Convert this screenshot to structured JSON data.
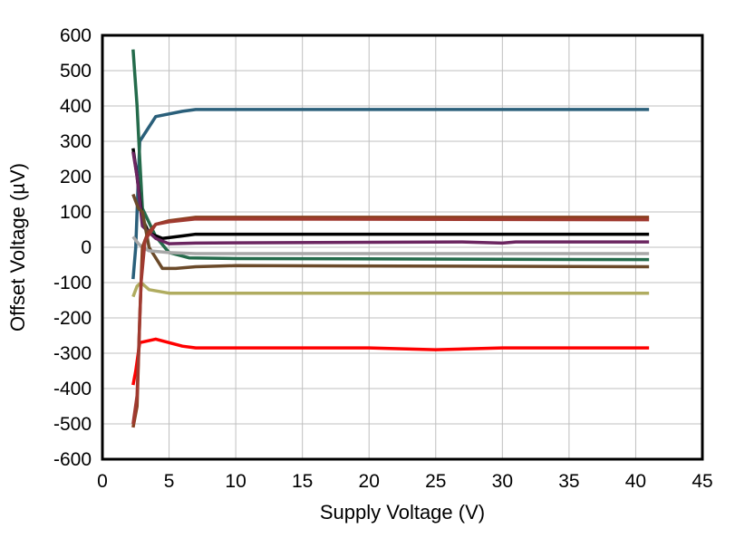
{
  "chart_data": {
    "type": "line",
    "xlabel": "Supply Voltage (V)",
    "ylabel": "Offset Voltage (µV)",
    "xlim": [
      0,
      45
    ],
    "ylim": [
      -600,
      600
    ],
    "xticks": [
      0,
      5,
      10,
      15,
      20,
      25,
      30,
      35,
      40,
      45
    ],
    "yticks": [
      600,
      500,
      400,
      300,
      200,
      100,
      0,
      -100,
      -200,
      -300,
      -400,
      -500,
      -600
    ],
    "grid": true,
    "series": [
      {
        "color": "#2A5F7A",
        "x": [
          2.3,
          2.5,
          2.8,
          4,
          6,
          7,
          41
        ],
        "y": [
          -90,
          0,
          300,
          370,
          385,
          390,
          390
        ]
      },
      {
        "color": "#246B4B",
        "x": [
          2.3,
          2.6,
          2.8,
          3,
          4,
          5,
          6.5,
          10,
          41
        ],
        "y": [
          560,
          400,
          250,
          110,
          30,
          -15,
          -30,
          -32,
          -35
        ]
      },
      {
        "color": "#000000",
        "x": [
          2.3,
          2.6,
          3,
          3.5,
          4.5,
          6,
          7,
          41
        ],
        "y": [
          280,
          200,
          80,
          40,
          25,
          32,
          37,
          37
        ]
      },
      {
        "color": "#6B2560",
        "x": [
          2.3,
          2.6,
          3,
          4,
          5,
          7,
          27,
          30,
          31,
          41
        ],
        "y": [
          270,
          200,
          60,
          25,
          10,
          12,
          15,
          12,
          15,
          15
        ]
      },
      {
        "color": "#6B4A2A",
        "x": [
          2.3,
          2.7,
          3,
          3.5,
          4.5,
          5.5,
          7,
          10,
          41
        ],
        "y": [
          150,
          110,
          100,
          0,
          -60,
          -60,
          -55,
          -52,
          -55
        ]
      },
      {
        "color": "#A8A8A8",
        "x": [
          2.3,
          2.7,
          3,
          3.5,
          5,
          7,
          41
        ],
        "y": [
          30,
          10,
          0,
          -10,
          -15,
          -18,
          -18
        ]
      },
      {
        "color": "#B0AC60",
        "x": [
          2.3,
          2.6,
          2.9,
          3.5,
          5,
          41
        ],
        "y": [
          -140,
          -110,
          -100,
          -120,
          -130,
          -130
        ]
      },
      {
        "color": "#FF0000",
        "x": [
          2.3,
          2.5,
          2.8,
          4,
          6,
          7,
          20,
          25,
          30,
          41
        ],
        "y": [
          -390,
          -350,
          -270,
          -260,
          -280,
          -285,
          -285,
          -290,
          -285,
          -285
        ]
      },
      {
        "color": "#8B4020",
        "x": [
          2.3,
          2.6,
          2.8,
          3,
          3.4,
          4,
          5,
          7,
          41
        ],
        "y": [
          -510,
          -450,
          -200,
          0,
          40,
          65,
          75,
          85,
          85
        ]
      },
      {
        "color": "#A03A30",
        "x": [
          2.3,
          2.6,
          2.9,
          3.2,
          4,
          5,
          7,
          41
        ],
        "y": [
          -500,
          -420,
          -100,
          20,
          65,
          72,
          80,
          78
        ]
      }
    ]
  }
}
